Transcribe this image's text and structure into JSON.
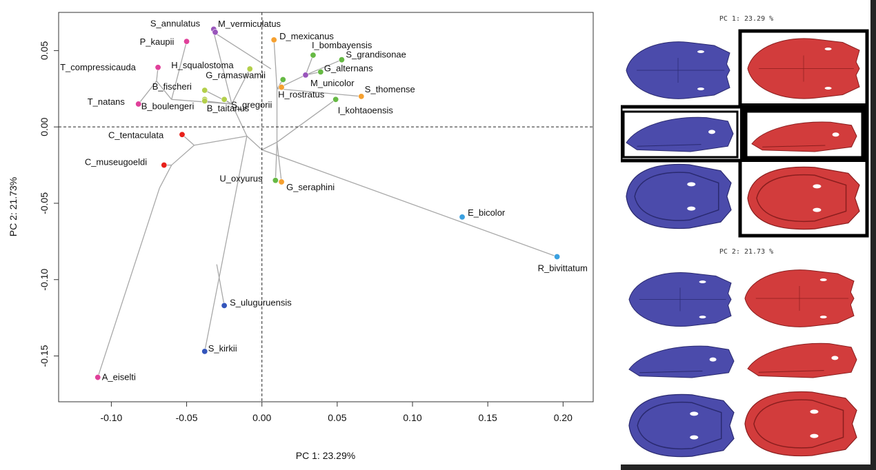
{
  "chart_data": {
    "type": "scatter",
    "xlabel": "PC 1: 23.29%",
    "ylabel": "PC 2: 21.73%",
    "xlim": [
      -0.135,
      0.22
    ],
    "ylim": [
      -0.18,
      0.075
    ],
    "x_ticks": [
      -0.1,
      -0.05,
      0.0,
      0.05,
      0.1,
      0.15,
      0.2
    ],
    "y_ticks": [
      0.05,
      0.0,
      -0.05,
      -0.1,
      -0.15
    ],
    "x_tick_labels": [
      "-0.10",
      "-0.05",
      "0.00",
      "0.05",
      "0.10",
      "0.15",
      "0.20"
    ],
    "y_tick_labels": [
      "0.05",
      "0.00",
      "-0.05",
      "-0.10",
      "-0.15"
    ],
    "reference_lines": {
      "x": 0,
      "y": 0,
      "style": "dashed"
    },
    "grid": false,
    "points": [
      {
        "label": "S_annulatus",
        "x": -0.032,
        "y": 0.064,
        "color": "#9955bb"
      },
      {
        "label": "M_vermiculatus",
        "x": -0.031,
        "y": 0.062,
        "color": "#9955bb"
      },
      {
        "label": "P_kaupii",
        "x": -0.05,
        "y": 0.056,
        "color": "#e0409a"
      },
      {
        "label": "T_compressicauda",
        "x": -0.069,
        "y": 0.039,
        "color": "#e0409a"
      },
      {
        "label": "H_squalostoma",
        "x": -0.008,
        "y": 0.038,
        "color": "#b3cf4a"
      },
      {
        "label": "B_fischeri",
        "x": -0.038,
        "y": 0.024,
        "color": "#b3cf4a"
      },
      {
        "label": "G_ramaswamii",
        "x": 0.014,
        "y": 0.031,
        "color": "#66b944"
      },
      {
        "label": "S_gregorii",
        "x": -0.025,
        "y": 0.018,
        "color": "#b3cf4a"
      },
      {
        "label": "B_taitanus",
        "x": -0.038,
        "y": 0.018,
        "color": "#b3cf4a"
      },
      {
        "label": "T_natans",
        "x": -0.082,
        "y": 0.015,
        "color": "#e0409a"
      },
      {
        "label": "B_boulengeri",
        "x": -0.038,
        "y": 0.017,
        "color": "#b3cf4a"
      },
      {
        "label": "D_mexicanus",
        "x": 0.008,
        "y": 0.057,
        "color": "#f5a030"
      },
      {
        "label": "I_bombayensis",
        "x": 0.034,
        "y": 0.047,
        "color": "#66b944"
      },
      {
        "label": "S_grandisonae",
        "x": 0.053,
        "y": 0.044,
        "color": "#66b944"
      },
      {
        "label": "G_alternans",
        "x": 0.039,
        "y": 0.036,
        "color": "#66b944"
      },
      {
        "label": "M_unicolor",
        "x": 0.029,
        "y": 0.034,
        "color": "#9955bb"
      },
      {
        "label": "H_rostratus",
        "x": 0.013,
        "y": 0.026,
        "color": "#f5a030"
      },
      {
        "label": "S_thomense",
        "x": 0.066,
        "y": 0.02,
        "color": "#f5a030"
      },
      {
        "label": "I_kohtaoensis",
        "x": 0.049,
        "y": 0.018,
        "color": "#66b944"
      },
      {
        "label": "C_tentaculata",
        "x": -0.053,
        "y": -0.005,
        "color": "#e8201a"
      },
      {
        "label": "C_museugoeldi",
        "x": -0.065,
        "y": -0.025,
        "color": "#e8201a"
      },
      {
        "label": "U_oxyurus",
        "x": 0.009,
        "y": -0.035,
        "color": "#66b944"
      },
      {
        "label": "G_seraphini",
        "x": 0.013,
        "y": -0.036,
        "color": "#f5a030"
      },
      {
        "label": "E_bicolor",
        "x": 0.133,
        "y": -0.059,
        "color": "#3aa0e0"
      },
      {
        "label": "R_bivittatum",
        "x": 0.196,
        "y": -0.085,
        "color": "#3aa0e0"
      },
      {
        "label": "S_uluguruensis",
        "x": -0.025,
        "y": -0.117,
        "color": "#3355bb"
      },
      {
        "label": "S_kirkii",
        "x": -0.038,
        "y": -0.147,
        "color": "#3355bb"
      },
      {
        "label": "A_eiselti",
        "x": -0.109,
        "y": -0.164,
        "color": "#e0409a"
      }
    ],
    "tree_edges": [
      [
        [
          0.0,
          -0.015
        ],
        [
          -0.01,
          -0.006
        ]
      ],
      [
        [
          0.0,
          -0.015
        ],
        [
          0.01,
          -0.01
        ]
      ],
      [
        [
          0.0,
          -0.015
        ],
        [
          0.196,
          -0.085
        ]
      ],
      [
        [
          0.135,
          -0.059
        ],
        [
          0.133,
          -0.059
        ]
      ],
      [
        [
          -0.01,
          -0.006
        ],
        [
          -0.045,
          -0.012
        ]
      ],
      [
        [
          -0.01,
          -0.006
        ],
        [
          -0.02,
          0.015
        ]
      ],
      [
        [
          -0.045,
          -0.012
        ],
        [
          -0.053,
          -0.005
        ]
      ],
      [
        [
          -0.045,
          -0.012
        ],
        [
          -0.06,
          -0.025
        ]
      ],
      [
        [
          -0.06,
          -0.025
        ],
        [
          -0.065,
          -0.025
        ]
      ],
      [
        [
          -0.06,
          -0.025
        ],
        [
          -0.068,
          -0.04
        ]
      ],
      [
        [
          -0.068,
          -0.04
        ],
        [
          -0.109,
          -0.164
        ]
      ],
      [
        [
          -0.02,
          0.015
        ],
        [
          -0.06,
          0.018
        ]
      ],
      [
        [
          -0.06,
          0.018
        ],
        [
          -0.07,
          0.03
        ]
      ],
      [
        [
          -0.07,
          0.03
        ],
        [
          -0.069,
          0.039
        ]
      ],
      [
        [
          -0.07,
          0.03
        ],
        [
          -0.082,
          0.015
        ]
      ],
      [
        [
          -0.06,
          0.018
        ],
        [
          -0.05,
          0.056
        ]
      ],
      [
        [
          -0.02,
          0.015
        ],
        [
          -0.038,
          0.024
        ]
      ],
      [
        [
          -0.02,
          0.015
        ],
        [
          -0.038,
          0.017
        ]
      ],
      [
        [
          -0.02,
          0.015
        ],
        [
          -0.025,
          0.018
        ]
      ],
      [
        [
          -0.02,
          0.015
        ],
        [
          -0.008,
          0.038
        ]
      ],
      [
        [
          -0.02,
          0.015
        ],
        [
          -0.032,
          0.062
        ]
      ],
      [
        [
          -0.032,
          0.062
        ],
        [
          0.006,
          0.038
        ]
      ],
      [
        [
          0.01,
          -0.01
        ],
        [
          0.01,
          0.025
        ]
      ],
      [
        [
          0.01,
          0.025
        ],
        [
          0.014,
          0.031
        ]
      ],
      [
        [
          0.01,
          0.025
        ],
        [
          0.013,
          0.026
        ]
      ],
      [
        [
          0.01,
          0.025
        ],
        [
          0.008,
          0.057
        ]
      ],
      [
        [
          0.01,
          0.025
        ],
        [
          0.029,
          0.034
        ]
      ],
      [
        [
          0.029,
          0.034
        ],
        [
          0.039,
          0.036
        ]
      ],
      [
        [
          0.029,
          0.034
        ],
        [
          0.053,
          0.044
        ]
      ],
      [
        [
          0.029,
          0.034
        ],
        [
          0.034,
          0.047
        ]
      ],
      [
        [
          0.01,
          0.025
        ],
        [
          0.066,
          0.02
        ]
      ],
      [
        [
          0.01,
          -0.01
        ],
        [
          0.049,
          0.018
        ]
      ],
      [
        [
          0.01,
          -0.01
        ],
        [
          0.009,
          -0.035
        ]
      ],
      [
        [
          0.01,
          -0.01
        ],
        [
          0.013,
          -0.036
        ]
      ],
      [
        [
          -0.01,
          -0.006
        ],
        [
          -0.038,
          -0.147
        ]
      ],
      [
        [
          -0.03,
          -0.09
        ],
        [
          -0.025,
          -0.117
        ]
      ]
    ]
  },
  "side_panel": {
    "pc1_caption": "PC 1: 23.29 %",
    "pc2_caption": "PC 2: 21.73 %",
    "negative_color": "#4b4bab",
    "positive_color": "#d23c3c"
  }
}
